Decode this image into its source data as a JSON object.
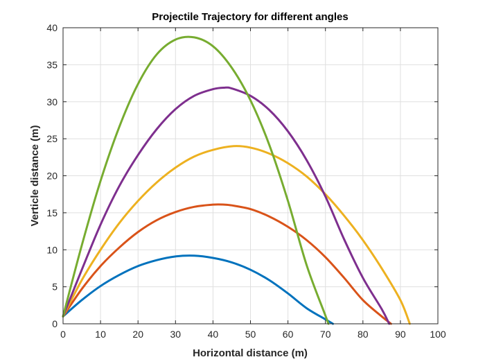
{
  "chart_data": {
    "type": "line",
    "title": "Projectile Trajectory for different angles",
    "xlabel": "Horizontal distance (m)",
    "ylabel": "Verticle distance (m)",
    "xlim": [
      0,
      100
    ],
    "ylim": [
      0,
      40
    ],
    "xticks": [
      0,
      10,
      20,
      30,
      40,
      50,
      60,
      70,
      80,
      90,
      100
    ],
    "yticks": [
      0,
      5,
      10,
      15,
      20,
      25,
      30,
      35,
      40
    ],
    "grid": true,
    "legend": null,
    "series": [
      {
        "color": "#0072BD",
        "x": [
          0,
          5,
          10,
          15,
          20,
          25,
          30,
          35,
          40,
          45,
          50,
          55,
          60,
          65,
          70,
          72
        ],
        "y": [
          1.0,
          3.2,
          5.1,
          6.6,
          7.8,
          8.6,
          9.1,
          9.2,
          8.9,
          8.3,
          7.3,
          5.9,
          4.1,
          2.1,
          0.6,
          0
        ]
      },
      {
        "color": "#D95319",
        "x": [
          0,
          5,
          10,
          15,
          20,
          25,
          30,
          35,
          40,
          43,
          45,
          50,
          55,
          60,
          65,
          70,
          75,
          80,
          85,
          87.5
        ],
        "y": [
          1.0,
          4.7,
          7.8,
          10.3,
          12.4,
          14.0,
          15.1,
          15.8,
          16.1,
          16.1,
          16.0,
          15.5,
          14.5,
          13.1,
          11.3,
          9.0,
          6.2,
          3.2,
          1.0,
          0
        ]
      },
      {
        "color": "#EDB120",
        "x": [
          0,
          5,
          10,
          15,
          20,
          25,
          30,
          35,
          40,
          45.5,
          50,
          55,
          60,
          65,
          70,
          75,
          80,
          85,
          90,
          92.5
        ],
        "y": [
          1.0,
          5.9,
          10.0,
          13.6,
          16.6,
          19.1,
          21.1,
          22.6,
          23.5,
          24.0,
          23.8,
          23.0,
          21.7,
          19.9,
          17.5,
          14.6,
          11.3,
          7.5,
          3.2,
          0
        ]
      },
      {
        "color": "#7E2F8E",
        "x": [
          0,
          5,
          10,
          15,
          20,
          25,
          30,
          35,
          40,
          43,
          45,
          50,
          55,
          60,
          65,
          70,
          75,
          80,
          85,
          87
        ],
        "y": [
          1.0,
          7.3,
          13.4,
          18.6,
          22.8,
          26.3,
          29.0,
          30.8,
          31.7,
          31.9,
          31.8,
          30.8,
          28.9,
          26.0,
          22.1,
          17.2,
          11.4,
          6.2,
          2.0,
          0
        ]
      },
      {
        "color": "#77AC30",
        "x": [
          0,
          5,
          10,
          15,
          20,
          25,
          30,
          35,
          40,
          45,
          50,
          55,
          60,
          65,
          70,
          70.8
        ],
        "y": [
          1.0,
          10.6,
          19.3,
          26.6,
          32.4,
          36.4,
          38.4,
          38.7,
          37.5,
          34.6,
          30.2,
          24.2,
          16.6,
          7.9,
          1.1,
          0
        ]
      }
    ]
  }
}
